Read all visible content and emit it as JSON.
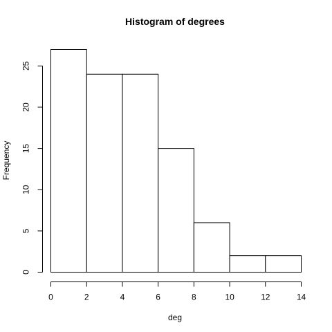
{
  "chart_data": {
    "type": "bar",
    "subtype": "histogram",
    "title": "Histogram of degrees",
    "xlabel": "deg",
    "ylabel": "Frequency",
    "bins": [
      {
        "from": 0,
        "to": 2,
        "count": 27
      },
      {
        "from": 2,
        "to": 4,
        "count": 24
      },
      {
        "from": 4,
        "to": 6,
        "count": 24
      },
      {
        "from": 6,
        "to": 8,
        "count": 15
      },
      {
        "from": 8,
        "to": 10,
        "count": 6
      },
      {
        "from": 10,
        "to": 12,
        "count": 2
      },
      {
        "from": 12,
        "to": 14,
        "count": 2
      }
    ],
    "xlim": [
      0,
      14
    ],
    "ylim": [
      0,
      27
    ],
    "x_ticks": [
      0,
      2,
      4,
      6,
      8,
      10,
      12,
      14
    ],
    "y_ticks": [
      0,
      5,
      10,
      15,
      20,
      25
    ],
    "grid": false,
    "bar_fill": "#ffffff",
    "bar_stroke": "#000000"
  }
}
